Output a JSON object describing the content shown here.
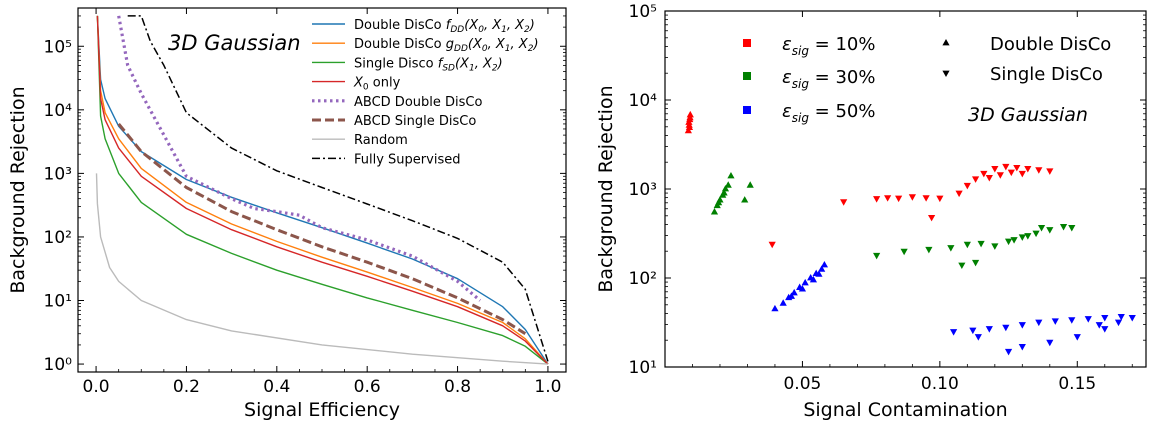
{
  "chart_data": [
    {
      "type": "line",
      "annotation": "3D Gaussian",
      "xlabel": "Signal Efficiency",
      "ylabel": "Background Rejection",
      "xlim": [
        -0.04,
        1.04
      ],
      "ylim": [
        0.75,
        400000
      ],
      "yscale": "log",
      "x_ticks": [
        0.0,
        0.2,
        0.4,
        0.6,
        0.8,
        1.0
      ],
      "x_tick_labels": [
        "0.0",
        "0.2",
        "0.4",
        "0.6",
        "0.8",
        "1.0"
      ],
      "y_ticks": [
        1,
        10,
        100,
        1000,
        10000,
        100000
      ],
      "y_tick_labels": [
        "10⁰",
        "10¹",
        "10²",
        "10³",
        "10⁴",
        "10⁵"
      ],
      "legend_position": "top-right",
      "series": [
        {
          "name": "Double DisCo f_DD(X0, X1, X2)",
          "legend_label": "Double DisCo f",
          "legend_sub": "DD",
          "legend_args": "(X",
          "legend_args_tail": "0, X1, X2)",
          "color": "#1f77b4",
          "style": "solid",
          "x": [
            0.003,
            0.01,
            0.02,
            0.05,
            0.1,
            0.2,
            0.3,
            0.4,
            0.5,
            0.6,
            0.7,
            0.8,
            0.9,
            0.95,
            1.0
          ],
          "y": [
            300000,
            30000,
            15000,
            5500,
            2200,
            800,
            420,
            240,
            140,
            80,
            45,
            22,
            8,
            3.5,
            1.0
          ]
        },
        {
          "name": "Double DisCo g_DD(X0, X1, X2)",
          "color": "#ff7f0e",
          "style": "solid",
          "x": [
            0.003,
            0.01,
            0.02,
            0.05,
            0.1,
            0.2,
            0.3,
            0.4,
            0.5,
            0.6,
            0.7,
            0.8,
            0.9,
            0.95,
            1.0
          ],
          "y": [
            300000,
            20000,
            9000,
            3500,
            1200,
            350,
            160,
            85,
            48,
            28,
            16,
            9,
            4.5,
            2.5,
            1.0
          ]
        },
        {
          "name": "Single Disco f_SD(X1, X2)",
          "color": "#2ca02c",
          "style": "solid",
          "x": [
            0.003,
            0.01,
            0.02,
            0.05,
            0.1,
            0.2,
            0.3,
            0.4,
            0.5,
            0.6,
            0.7,
            0.8,
            0.9,
            0.95,
            1.0
          ],
          "y": [
            300000,
            8000,
            3500,
            1000,
            350,
            110,
            55,
            30,
            18,
            11,
            7,
            4.5,
            2.8,
            1.9,
            1.0
          ]
        },
        {
          "name": "X0 only",
          "color": "#d62728",
          "style": "solid",
          "x": [
            0.003,
            0.01,
            0.02,
            0.05,
            0.1,
            0.2,
            0.3,
            0.4,
            0.5,
            0.6,
            0.7,
            0.8,
            0.9,
            0.95,
            1.0
          ],
          "y": [
            300000,
            15000,
            7000,
            2500,
            900,
            280,
            130,
            70,
            40,
            24,
            14,
            8,
            4,
            2.3,
            1.0
          ]
        },
        {
          "name": "ABCD Double DisCo",
          "color": "#9467bd",
          "style": "dotted",
          "x": [
            0.05,
            0.07,
            0.1,
            0.15,
            0.2,
            0.25,
            0.3,
            0.35,
            0.4,
            0.45,
            0.5,
            0.6,
            0.7,
            0.8,
            0.85
          ],
          "y": [
            300000,
            50000,
            18000,
            4000,
            900,
            600,
            400,
            280,
            250,
            220,
            140,
            90,
            50,
            20,
            10
          ]
        },
        {
          "name": "ABCD Single DisCo",
          "color": "#8c564b",
          "style": "dashed",
          "x": [
            0.05,
            0.1,
            0.2,
            0.3,
            0.4,
            0.5,
            0.6,
            0.7,
            0.8,
            0.9,
            0.95
          ],
          "y": [
            6000,
            2200,
            600,
            250,
            130,
            70,
            40,
            22,
            11,
            5,
            3
          ]
        },
        {
          "name": "Random",
          "color": "#bbbbbb",
          "style": "solid",
          "x": [
            0.001,
            0.003,
            0.01,
            0.03,
            0.05,
            0.1,
            0.2,
            0.3,
            0.5,
            0.7,
            0.9,
            1.0
          ],
          "y": [
            1000,
            333,
            100,
            33,
            20,
            10,
            5,
            3.33,
            2,
            1.43,
            1.11,
            1.0
          ]
        },
        {
          "name": "Fully Supervised",
          "color": "#000000",
          "style": "dashdot",
          "x": [
            0.07,
            0.1,
            0.12,
            0.15,
            0.2,
            0.3,
            0.4,
            0.5,
            0.6,
            0.7,
            0.8,
            0.9,
            0.95,
            1.0
          ],
          "y": [
            300000,
            300000,
            120000,
            50000,
            9000,
            2500,
            1100,
            600,
            330,
            180,
            95,
            40,
            15,
            1.1
          ]
        }
      ]
    },
    {
      "type": "scatter",
      "annotation": "3D Gaussian",
      "xlabel": "Signal Contamination",
      "ylabel": "Background Rejection",
      "xlim": [
        0.0,
        0.175
      ],
      "ylim": [
        10,
        100000
      ],
      "yscale": "log",
      "x_ticks": [
        0.05,
        0.1,
        0.15
      ],
      "x_tick_labels": [
        "0.05",
        "0.10",
        "0.15"
      ],
      "y_ticks": [
        10,
        100,
        1000,
        10000,
        100000
      ],
      "y_tick_labels": [
        "10¹",
        "10²",
        "10³",
        "10⁴",
        "10⁵"
      ],
      "legend_position": "top",
      "color_legend": [
        {
          "label": "ε_sig = 10%",
          "eps_value": "10%",
          "color": "#ff0000"
        },
        {
          "label": "ε_sig = 30%",
          "eps_value": "30%",
          "color": "#008000"
        },
        {
          "label": "ε_sig = 50%",
          "eps_value": "50%",
          "color": "#0000ff"
        }
      ],
      "marker_legend": [
        {
          "label": "Double DisCo",
          "marker": "triangle-up"
        },
        {
          "label": "Single DisCo",
          "marker": "triangle-down"
        }
      ],
      "series": [
        {
          "name": "Double DisCo ε_sig=10%",
          "color": "#ff0000",
          "marker": "triangle-up",
          "points": [
            [
              0.0085,
              4500
            ],
            [
              0.0088,
              5200
            ],
            [
              0.009,
              6000
            ],
            [
              0.0092,
              6800
            ],
            [
              0.0087,
              5600
            ],
            [
              0.0091,
              6300
            ],
            [
              0.0089,
              4900
            ]
          ]
        },
        {
          "name": "Double DisCo ε_sig=30%",
          "color": "#008000",
          "marker": "triangle-up",
          "points": [
            [
              0.018,
              550
            ],
            [
              0.019,
              650
            ],
            [
              0.02,
              750
            ],
            [
              0.021,
              850
            ],
            [
              0.022,
              1000
            ],
            [
              0.023,
              1100
            ],
            [
              0.024,
              1400
            ],
            [
              0.029,
              750
            ],
            [
              0.031,
              1100
            ],
            [
              0.0195,
              700
            ],
            [
              0.0215,
              900
            ]
          ]
        },
        {
          "name": "Double DisCo ε_sig=50%",
          "color": "#0000ff",
          "marker": "triangle-up",
          "points": [
            [
              0.04,
              45
            ],
            [
              0.043,
              52
            ],
            [
              0.045,
              60
            ],
            [
              0.047,
              68
            ],
            [
              0.049,
              78
            ],
            [
              0.051,
              88
            ],
            [
              0.053,
              100
            ],
            [
              0.055,
              112
            ],
            [
              0.057,
              125
            ],
            [
              0.058,
              140
            ],
            [
              0.056,
              110
            ],
            [
              0.054,
              95
            ],
            [
              0.05,
              75
            ],
            [
              0.046,
              62
            ]
          ]
        },
        {
          "name": "Single DisCo ε_sig=10%",
          "color": "#ff0000",
          "marker": "triangle-down",
          "points": [
            [
              0.039,
              240
            ],
            [
              0.065,
              720
            ],
            [
              0.077,
              780
            ],
            [
              0.081,
              800
            ],
            [
              0.085,
              790
            ],
            [
              0.09,
              820
            ],
            [
              0.095,
              800
            ],
            [
              0.1,
              790
            ],
            [
              0.097,
              480
            ],
            [
              0.107,
              900
            ],
            [
              0.11,
              1100
            ],
            [
              0.113,
              1300
            ],
            [
              0.116,
              1500
            ],
            [
              0.12,
              1700
            ],
            [
              0.124,
              1800
            ],
            [
              0.128,
              1750
            ],
            [
              0.132,
              1700
            ],
            [
              0.136,
              1650
            ],
            [
              0.14,
              1600
            ],
            [
              0.118,
              1350
            ],
            [
              0.122,
              1450
            ],
            [
              0.126,
              1550
            ],
            [
              0.13,
              1500
            ]
          ]
        },
        {
          "name": "Single DisCo ε_sig=30%",
          "color": "#008000",
          "marker": "triangle-down",
          "points": [
            [
              0.077,
              180
            ],
            [
              0.087,
              200
            ],
            [
              0.096,
              210
            ],
            [
              0.104,
              220
            ],
            [
              0.11,
              240
            ],
            [
              0.115,
              245
            ],
            [
              0.108,
              140
            ],
            [
              0.113,
              150
            ],
            [
              0.12,
              230
            ],
            [
              0.125,
              260
            ],
            [
              0.13,
              290
            ],
            [
              0.135,
              320
            ],
            [
              0.14,
              350
            ],
            [
              0.145,
              380
            ],
            [
              0.148,
              370
            ],
            [
              0.137,
              370
            ],
            [
              0.127,
              270
            ],
            [
              0.132,
              300
            ]
          ]
        },
        {
          "name": "Single DisCo ε_sig=50%",
          "color": "#0000ff",
          "marker": "triangle-down",
          "points": [
            [
              0.105,
              25
            ],
            [
              0.112,
              26
            ],
            [
              0.118,
              27
            ],
            [
              0.124,
              28
            ],
            [
              0.13,
              30
            ],
            [
              0.136,
              32
            ],
            [
              0.142,
              33
            ],
            [
              0.148,
              34
            ],
            [
              0.154,
              35
            ],
            [
              0.16,
              36
            ],
            [
              0.166,
              37
            ],
            [
              0.17,
              36
            ],
            [
              0.125,
              15
            ],
            [
              0.13,
              17
            ],
            [
              0.14,
              19
            ],
            [
              0.15,
              22
            ],
            [
              0.16,
              27
            ],
            [
              0.165,
              32
            ],
            [
              0.158,
              30
            ],
            [
              0.114,
              22
            ]
          ]
        }
      ]
    }
  ]
}
